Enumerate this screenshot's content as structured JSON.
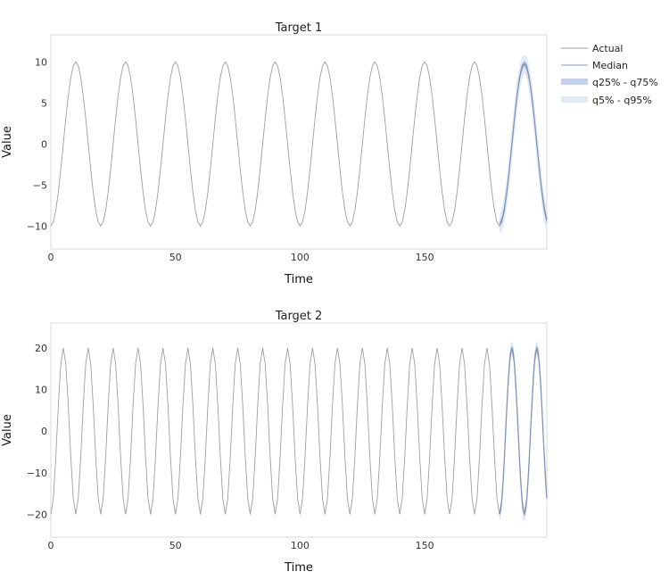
{
  "legend": {
    "placement": "top-right",
    "items": [
      {
        "key": "actual",
        "label": "Actual",
        "color": "#9e9e9e"
      },
      {
        "key": "median",
        "label": "Median",
        "color": "#7f93b7"
      },
      {
        "key": "q25_75",
        "label": "q25% - q75%",
        "color": "#c3d2ea"
      },
      {
        "key": "q5_95",
        "label": "q5% - q95%",
        "color": "#e3eaf5"
      }
    ]
  },
  "chart_data": [
    {
      "type": "line",
      "title": "Target 1",
      "xlabel": "Time",
      "ylabel": "Value",
      "xlim": [
        0,
        199
      ],
      "ylim": [
        -12.8,
        13.3
      ],
      "x_ticks": [
        0,
        50,
        100,
        150
      ],
      "y_ticks": [
        -10,
        -5,
        0,
        5,
        10
      ],
      "y_tick_labels": [
        "−10",
        "−5",
        "0",
        "5",
        "10"
      ],
      "grid": false,
      "actual": {
        "x_start": 0,
        "x_end": 199,
        "amplitude": 10,
        "period": 20,
        "phase_points": [
          [
            0,
            -10
          ],
          [
            5,
            0
          ],
          [
            10,
            10
          ],
          [
            15,
            0
          ],
          [
            20,
            -10
          ]
        ]
      },
      "forecast": {
        "x_start": 180,
        "x_end": 199,
        "median_peak_x": 190,
        "median_peak_y": 9.7,
        "median_end_y": -9.5,
        "q25_75_halfwidth": 0.7,
        "q5_95_halfwidth": 2.0
      }
    },
    {
      "type": "line",
      "title": "Target 2",
      "xlabel": "Time",
      "ylabel": "Value",
      "xlim": [
        0,
        199
      ],
      "ylim": [
        -25.5,
        26.0
      ],
      "x_ticks": [
        0,
        50,
        100,
        150
      ],
      "y_ticks": [
        -20,
        -10,
        0,
        10,
        20
      ],
      "y_tick_labels": [
        "−20",
        "−10",
        "0",
        "10",
        "20"
      ],
      "grid": false,
      "actual": {
        "x_start": 0,
        "x_end": 199,
        "amplitude": 20,
        "period": 10,
        "phase_points": [
          [
            0,
            -20
          ],
          [
            2.5,
            0
          ],
          [
            5,
            20
          ],
          [
            7.5,
            0
          ],
          [
            10,
            -20
          ]
        ]
      },
      "forecast": {
        "x_start": 180,
        "x_end": 199,
        "median_peak_x": 185,
        "median_peak_y": 20,
        "median_end_y": -20,
        "q25_75_halfwidth": 1.0,
        "q5_95_halfwidth": 3.0
      }
    }
  ]
}
